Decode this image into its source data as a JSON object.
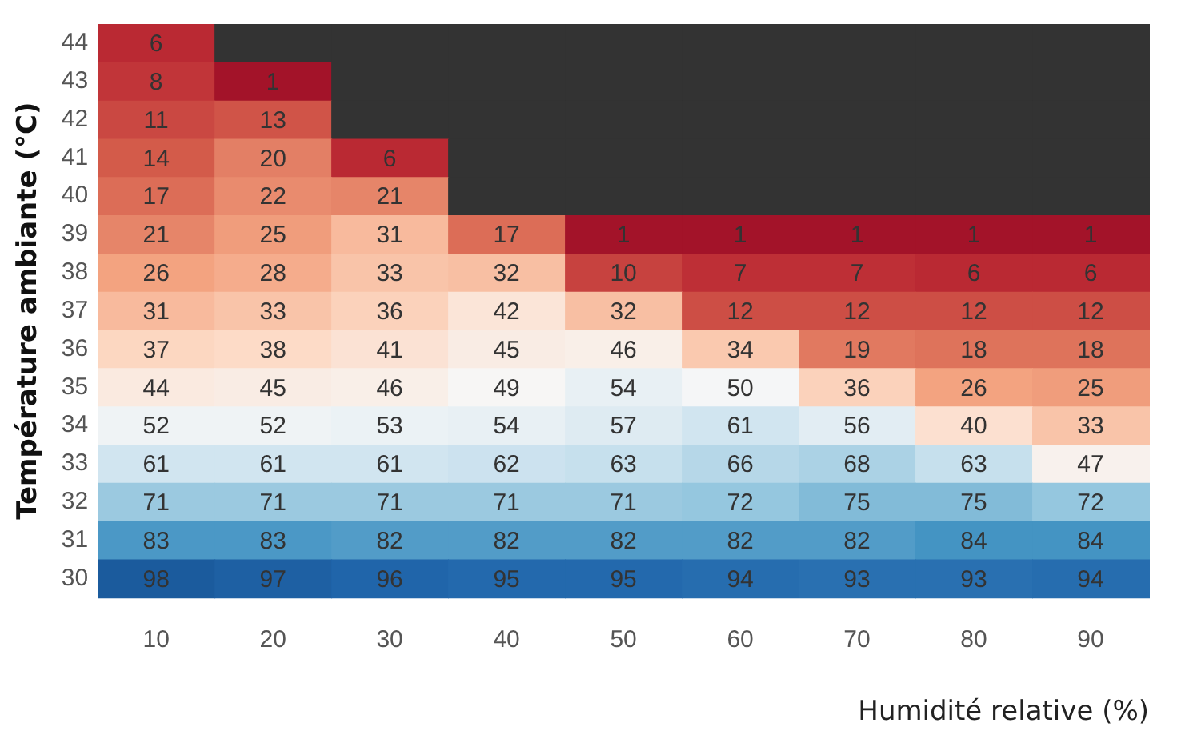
{
  "chart_data": {
    "type": "heatmap",
    "xlabel": "Humidité relative (%)",
    "ylabel": "Température ambiante (°C)",
    "categories": [
      "10",
      "20",
      "30",
      "40",
      "50",
      "60",
      "70",
      "80",
      "90"
    ],
    "y_categories": [
      "44",
      "43",
      "42",
      "41",
      "40",
      "39",
      "38",
      "37",
      "36",
      "35",
      "34",
      "33",
      "32",
      "31",
      "30"
    ],
    "cells": [
      [
        6,
        null,
        null,
        null,
        null,
        null,
        null,
        null,
        null
      ],
      [
        8,
        1,
        null,
        null,
        null,
        null,
        null,
        null,
        null
      ],
      [
        11,
        13,
        null,
        null,
        null,
        null,
        null,
        null,
        null
      ],
      [
        14,
        20,
        6,
        null,
        null,
        null,
        null,
        null,
        null
      ],
      [
        17,
        22,
        21,
        null,
        null,
        null,
        null,
        null,
        null
      ],
      [
        21,
        25,
        31,
        17,
        1,
        1,
        1,
        1,
        1
      ],
      [
        26,
        28,
        33,
        32,
        10,
        7,
        7,
        6,
        6
      ],
      [
        31,
        33,
        36,
        42,
        32,
        12,
        12,
        12,
        12
      ],
      [
        37,
        38,
        41,
        45,
        46,
        34,
        19,
        18,
        18
      ],
      [
        44,
        45,
        46,
        49,
        54,
        50,
        36,
        26,
        25
      ],
      [
        52,
        52,
        53,
        54,
        57,
        61,
        56,
        40,
        33
      ],
      [
        61,
        61,
        61,
        62,
        63,
        66,
        68,
        63,
        47
      ],
      [
        71,
        71,
        71,
        71,
        71,
        72,
        75,
        75,
        72
      ],
      [
        83,
        83,
        82,
        82,
        82,
        82,
        82,
        84,
        84
      ],
      [
        98,
        97,
        96,
        95,
        95,
        94,
        93,
        93,
        94
      ]
    ],
    "data_labels": true
  }
}
